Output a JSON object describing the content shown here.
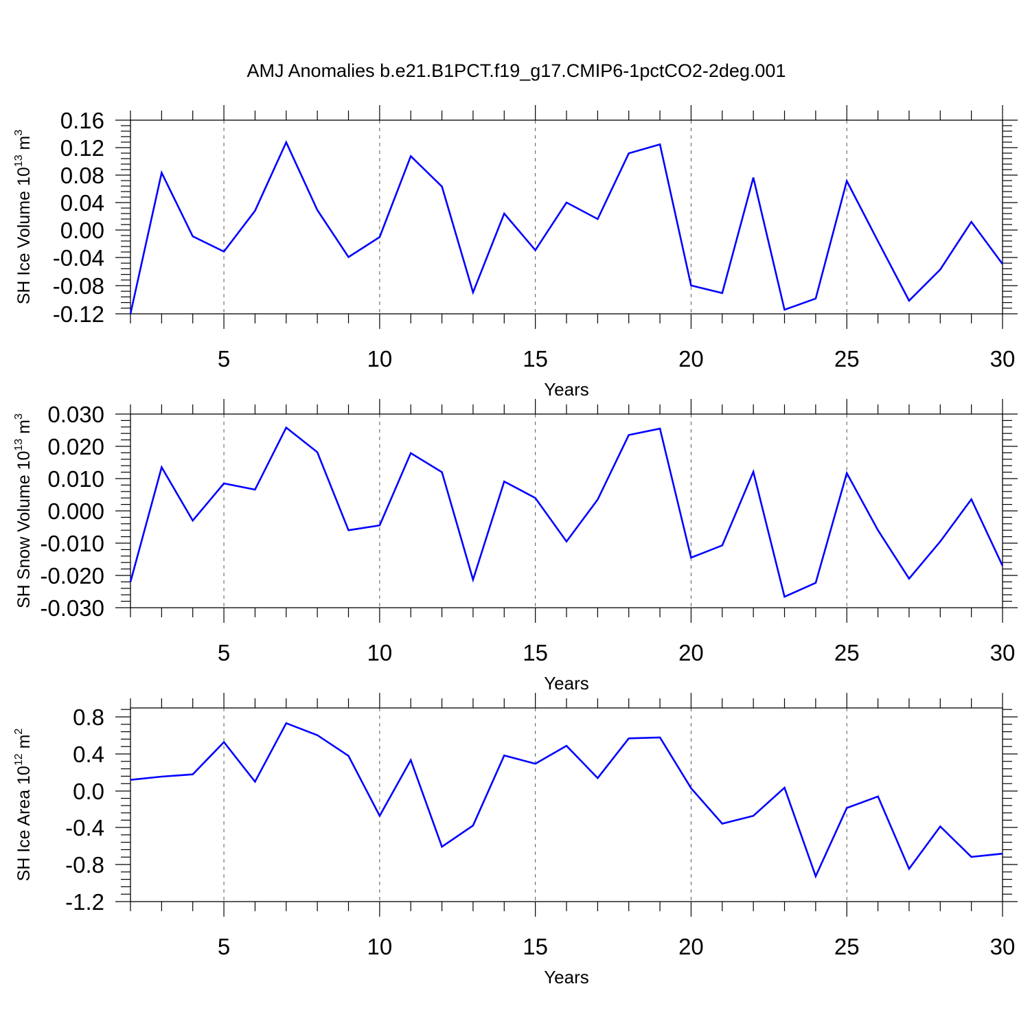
{
  "title": "AMJ Anomalies b.e21.B1PCT.f19_g17.CMIP6-1pctCO2-2deg.001",
  "chart_data": [
    {
      "type": "line",
      "ylabel_main": "SH Ice Volume 10",
      "ylabel_exp": "13",
      "ylabel_unit": " m",
      "ylabel_unit_exp": "3",
      "xlabel": "Years",
      "xlim": [
        2,
        30
      ],
      "ylim": [
        -0.12,
        0.16
      ],
      "xticks": [
        "5",
        "10",
        "15",
        "20",
        "25",
        "30"
      ],
      "yticks": [
        "0.16",
        "0.12",
        "0.08",
        "0.04",
        "0.00",
        "-0.04",
        "-0.08",
        "-0.12"
      ],
      "grid": "vertical dashed at major x ticks",
      "color": "#0000ff",
      "x": [
        2,
        3,
        4,
        5,
        6,
        7,
        8,
        9,
        10,
        11,
        12,
        13,
        14,
        15,
        16,
        17,
        18,
        19,
        20,
        21,
        22,
        23,
        24,
        25,
        26,
        27,
        28,
        29,
        30
      ],
      "values": [
        -0.12,
        0.084,
        -0.008,
        -0.03,
        0.029,
        0.128,
        0.03,
        -0.038,
        -0.009,
        0.108,
        0.064,
        -0.089,
        0.025,
        -0.028,
        0.041,
        0.017,
        0.112,
        0.125,
        -0.079,
        -0.09,
        0.077,
        -0.114,
        -0.098,
        0.072,
        -0.015,
        -0.101,
        -0.056,
        0.013,
        -0.048
      ]
    },
    {
      "type": "line",
      "ylabel_main": "SH Snow Volume 10",
      "ylabel_exp": "13",
      "ylabel_unit": " m",
      "ylabel_unit_exp": "3",
      "xlabel": "Years",
      "xlim": [
        2,
        30
      ],
      "ylim": [
        -0.03,
        0.03
      ],
      "xticks": [
        "5",
        "10",
        "15",
        "20",
        "25",
        "30"
      ],
      "yticks": [
        "0.030",
        "0.020",
        "0.010",
        "0.000",
        "-0.010",
        "-0.020",
        "-0.030"
      ],
      "grid": "vertical dashed at major x ticks",
      "color": "#0000ff",
      "x": [
        2,
        3,
        4,
        5,
        6,
        7,
        8,
        9,
        10,
        11,
        12,
        13,
        14,
        15,
        16,
        17,
        18,
        19,
        20,
        21,
        22,
        23,
        24,
        25,
        26,
        27,
        28,
        29,
        30
      ],
      "values": [
        -0.022,
        0.0135,
        -0.003,
        0.0085,
        0.0066,
        0.0258,
        0.0182,
        -0.006,
        -0.0045,
        0.0179,
        0.012,
        -0.0213,
        0.0091,
        0.004,
        -0.0095,
        0.0035,
        0.0235,
        0.0255,
        -0.0145,
        -0.0107,
        0.0121,
        -0.0266,
        -0.0223,
        0.0117,
        -0.006,
        -0.021,
        -0.0095,
        0.0036,
        -0.017
      ]
    },
    {
      "type": "line",
      "ylabel_main": "SH Ice Area 10",
      "ylabel_exp": "12",
      "ylabel_unit": " m",
      "ylabel_unit_exp": "2",
      "xlabel": "Years",
      "xlim": [
        2,
        30
      ],
      "ylim": [
        -1.2,
        0.9
      ],
      "xticks": [
        "5",
        "10",
        "15",
        "20",
        "25",
        "30"
      ],
      "yticks": [
        "0.8",
        "0.4",
        "0.0",
        "-0.4",
        "-0.8",
        "-1.2"
      ],
      "grid": "vertical dashed at major x ticks",
      "color": "#0000ff",
      "x": [
        2,
        3,
        4,
        5,
        6,
        7,
        8,
        9,
        10,
        11,
        12,
        13,
        14,
        15,
        16,
        17,
        18,
        19,
        20,
        21,
        22,
        23,
        24,
        25,
        26,
        27,
        28,
        29,
        30
      ],
      "values": [
        0.12,
        0.155,
        0.18,
        0.53,
        0.1,
        0.735,
        0.605,
        0.38,
        -0.27,
        0.335,
        -0.605,
        -0.375,
        0.385,
        0.295,
        0.49,
        0.14,
        0.57,
        0.58,
        0.03,
        -0.355,
        -0.27,
        0.035,
        -0.925,
        -0.185,
        -0.06,
        -0.845,
        -0.385,
        -0.715,
        -0.68
      ]
    }
  ]
}
